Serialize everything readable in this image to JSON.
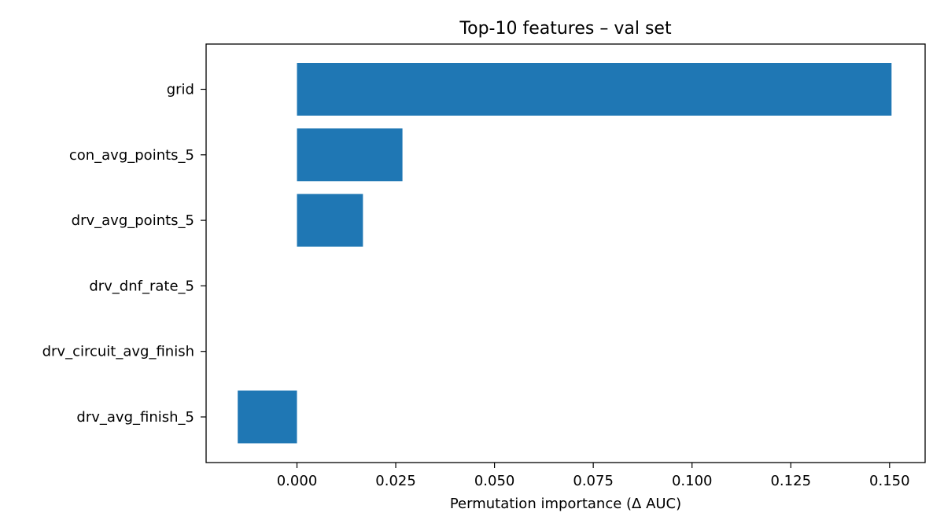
{
  "chart_data": {
    "type": "bar",
    "orientation": "horizontal",
    "title": "Top-10 features – val set",
    "xlabel": "Permutation importance (Δ AUC)",
    "ylabel": "",
    "categories": [
      "grid",
      "con_avg_points_5",
      "drv_avg_points_5",
      "drv_dnf_rate_5",
      "drv_circuit_avg_finish",
      "drv_avg_finish_5"
    ],
    "values": [
      0.1505,
      0.0267,
      0.0167,
      0.0,
      0.0,
      -0.015
    ],
    "xlim": [
      -0.023,
      0.159
    ],
    "xticks": [
      "0.000",
      "0.025",
      "0.050",
      "0.075",
      "0.100",
      "0.125",
      "0.150"
    ],
    "bar_color": "#1f77b4",
    "grid": false,
    "legend": "none"
  }
}
